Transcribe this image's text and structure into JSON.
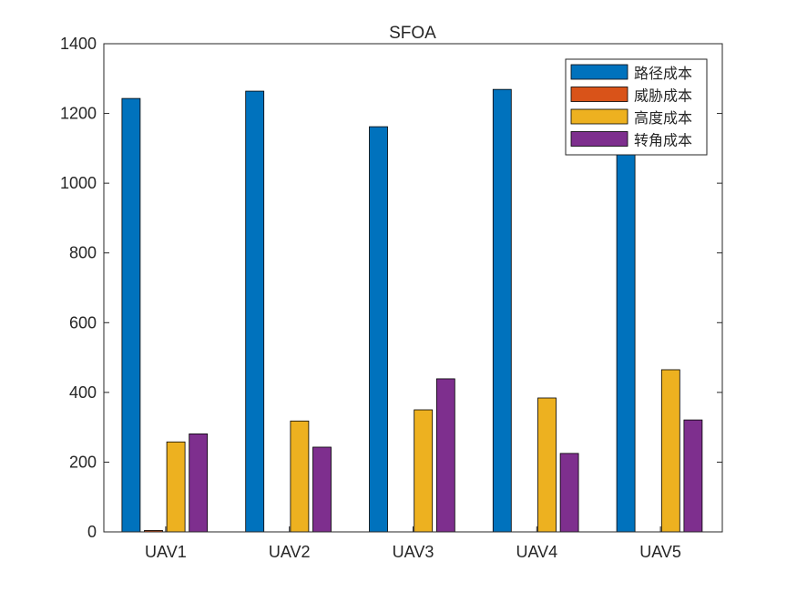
{
  "chart_data": {
    "type": "bar",
    "title": "SFOA",
    "xlabel": "",
    "ylabel": "",
    "ylim": [
      0,
      1400
    ],
    "yticks": [
      "0",
      "200",
      "400",
      "600",
      "800",
      "1000",
      "1200",
      "1400"
    ],
    "categories": [
      "UAV1",
      "UAV2",
      "UAV3",
      "UAV4",
      "UAV5"
    ],
    "series": [
      {
        "name": "路径成本",
        "color": "#0072BD",
        "values": [
          1243,
          1264,
          1162,
          1269,
          1220
        ]
      },
      {
        "name": "威胁成本",
        "color": "#D95319",
        "values": [
          4,
          0,
          0,
          0,
          0
        ]
      },
      {
        "name": "高度成本",
        "color": "#EDB120",
        "values": [
          258,
          318,
          350,
          384,
          465
        ]
      },
      {
        "name": "转角成本",
        "color": "#7E2F8E",
        "values": [
          281,
          243,
          439,
          225,
          321
        ]
      }
    ],
    "legend": "top-right",
    "grid": false
  }
}
